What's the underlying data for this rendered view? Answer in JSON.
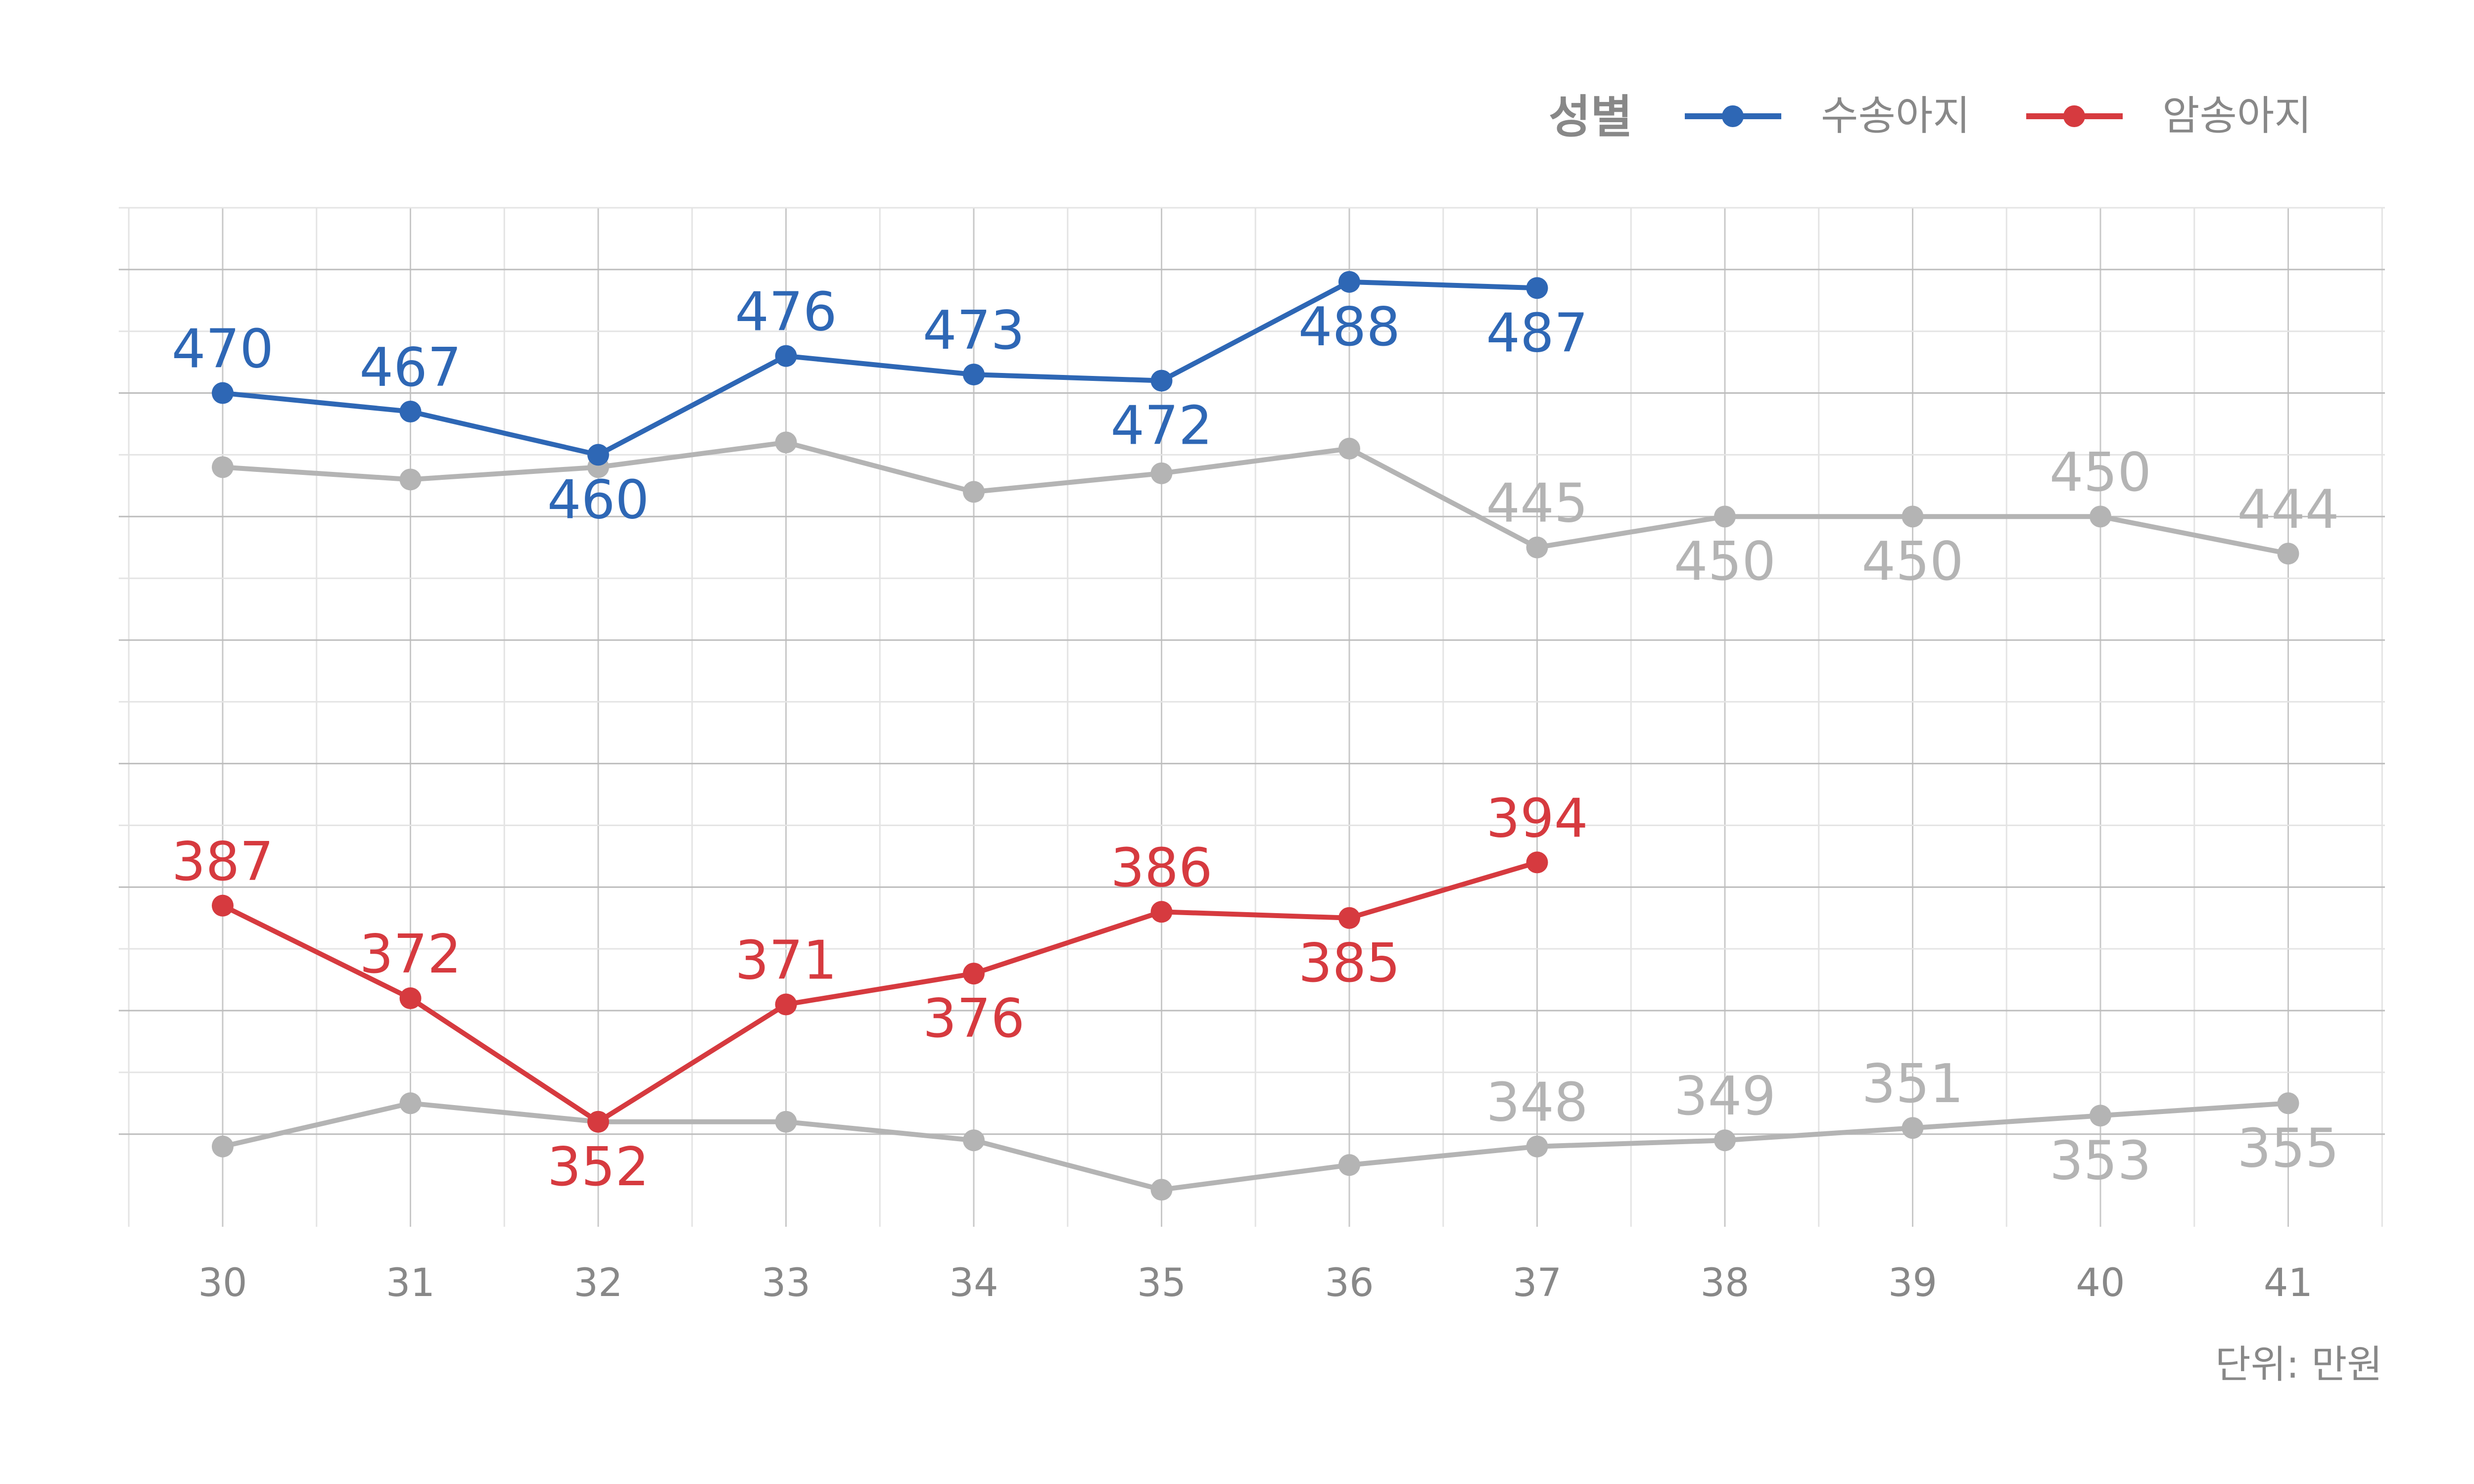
{
  "chart_data": {
    "type": "line",
    "legend": {
      "title": "성별",
      "position": "top-right",
      "entries": [
        {
          "label": "수송아지",
          "color": "#2e67b5"
        },
        {
          "label": "암송아지",
          "color": "#d63a3f"
        }
      ]
    },
    "x": [
      30,
      31,
      32,
      33,
      34,
      35,
      36,
      37,
      38,
      39,
      40,
      41
    ],
    "x_tick_labels": [
      "30",
      "31",
      "32",
      "33",
      "34",
      "35",
      "36",
      "37",
      "38",
      "39",
      "40",
      "41"
    ],
    "ylim": [
      335,
      500
    ],
    "grid": true,
    "unit": "단위: 만원",
    "series": [
      {
        "name": "수송아지",
        "color": "#2e67b5",
        "values": [
          470,
          467,
          460,
          476,
          473,
          472,
          488,
          487,
          null,
          null,
          null,
          null
        ],
        "show_labels": true
      },
      {
        "name": "암송아지",
        "color": "#d63a3f",
        "values": [
          387,
          372,
          352,
          371,
          376,
          386,
          385,
          394,
          null,
          null,
          null,
          null
        ],
        "show_labels": true
      },
      {
        "color": "#b4b4b4",
        "values": [
          458,
          456,
          458,
          462,
          454,
          457,
          461,
          445,
          450,
          450,
          450,
          444
        ],
        "labels": [
          "",
          "",
          "",
          "",
          "",
          "",
          "",
          "445",
          "450",
          "450",
          "450",
          "444"
        ]
      },
      {
        "color": "#b4b4b4",
        "values": [
          348,
          355,
          352,
          352,
          349,
          341,
          345,
          348,
          349,
          351,
          353,
          355
        ],
        "labels": [
          "",
          "",
          "",
          "",
          "",
          "",
          "",
          "348",
          "349",
          "351",
          "353",
          "355"
        ]
      }
    ],
    "label_placement": [
      [
        "above",
        "above",
        "below",
        "above",
        "above",
        "below",
        "below",
        "below"
      ],
      [
        "above",
        "above",
        "below",
        "above",
        "below",
        "above",
        "below",
        "above"
      ],
      [
        "",
        "",
        "",
        "",
        "",
        "",
        "",
        "above",
        "below",
        "below",
        "above",
        "above"
      ],
      [
        "",
        "",
        "",
        "",
        "",
        "",
        "",
        "above",
        "above",
        "above",
        "below",
        "below"
      ]
    ]
  }
}
